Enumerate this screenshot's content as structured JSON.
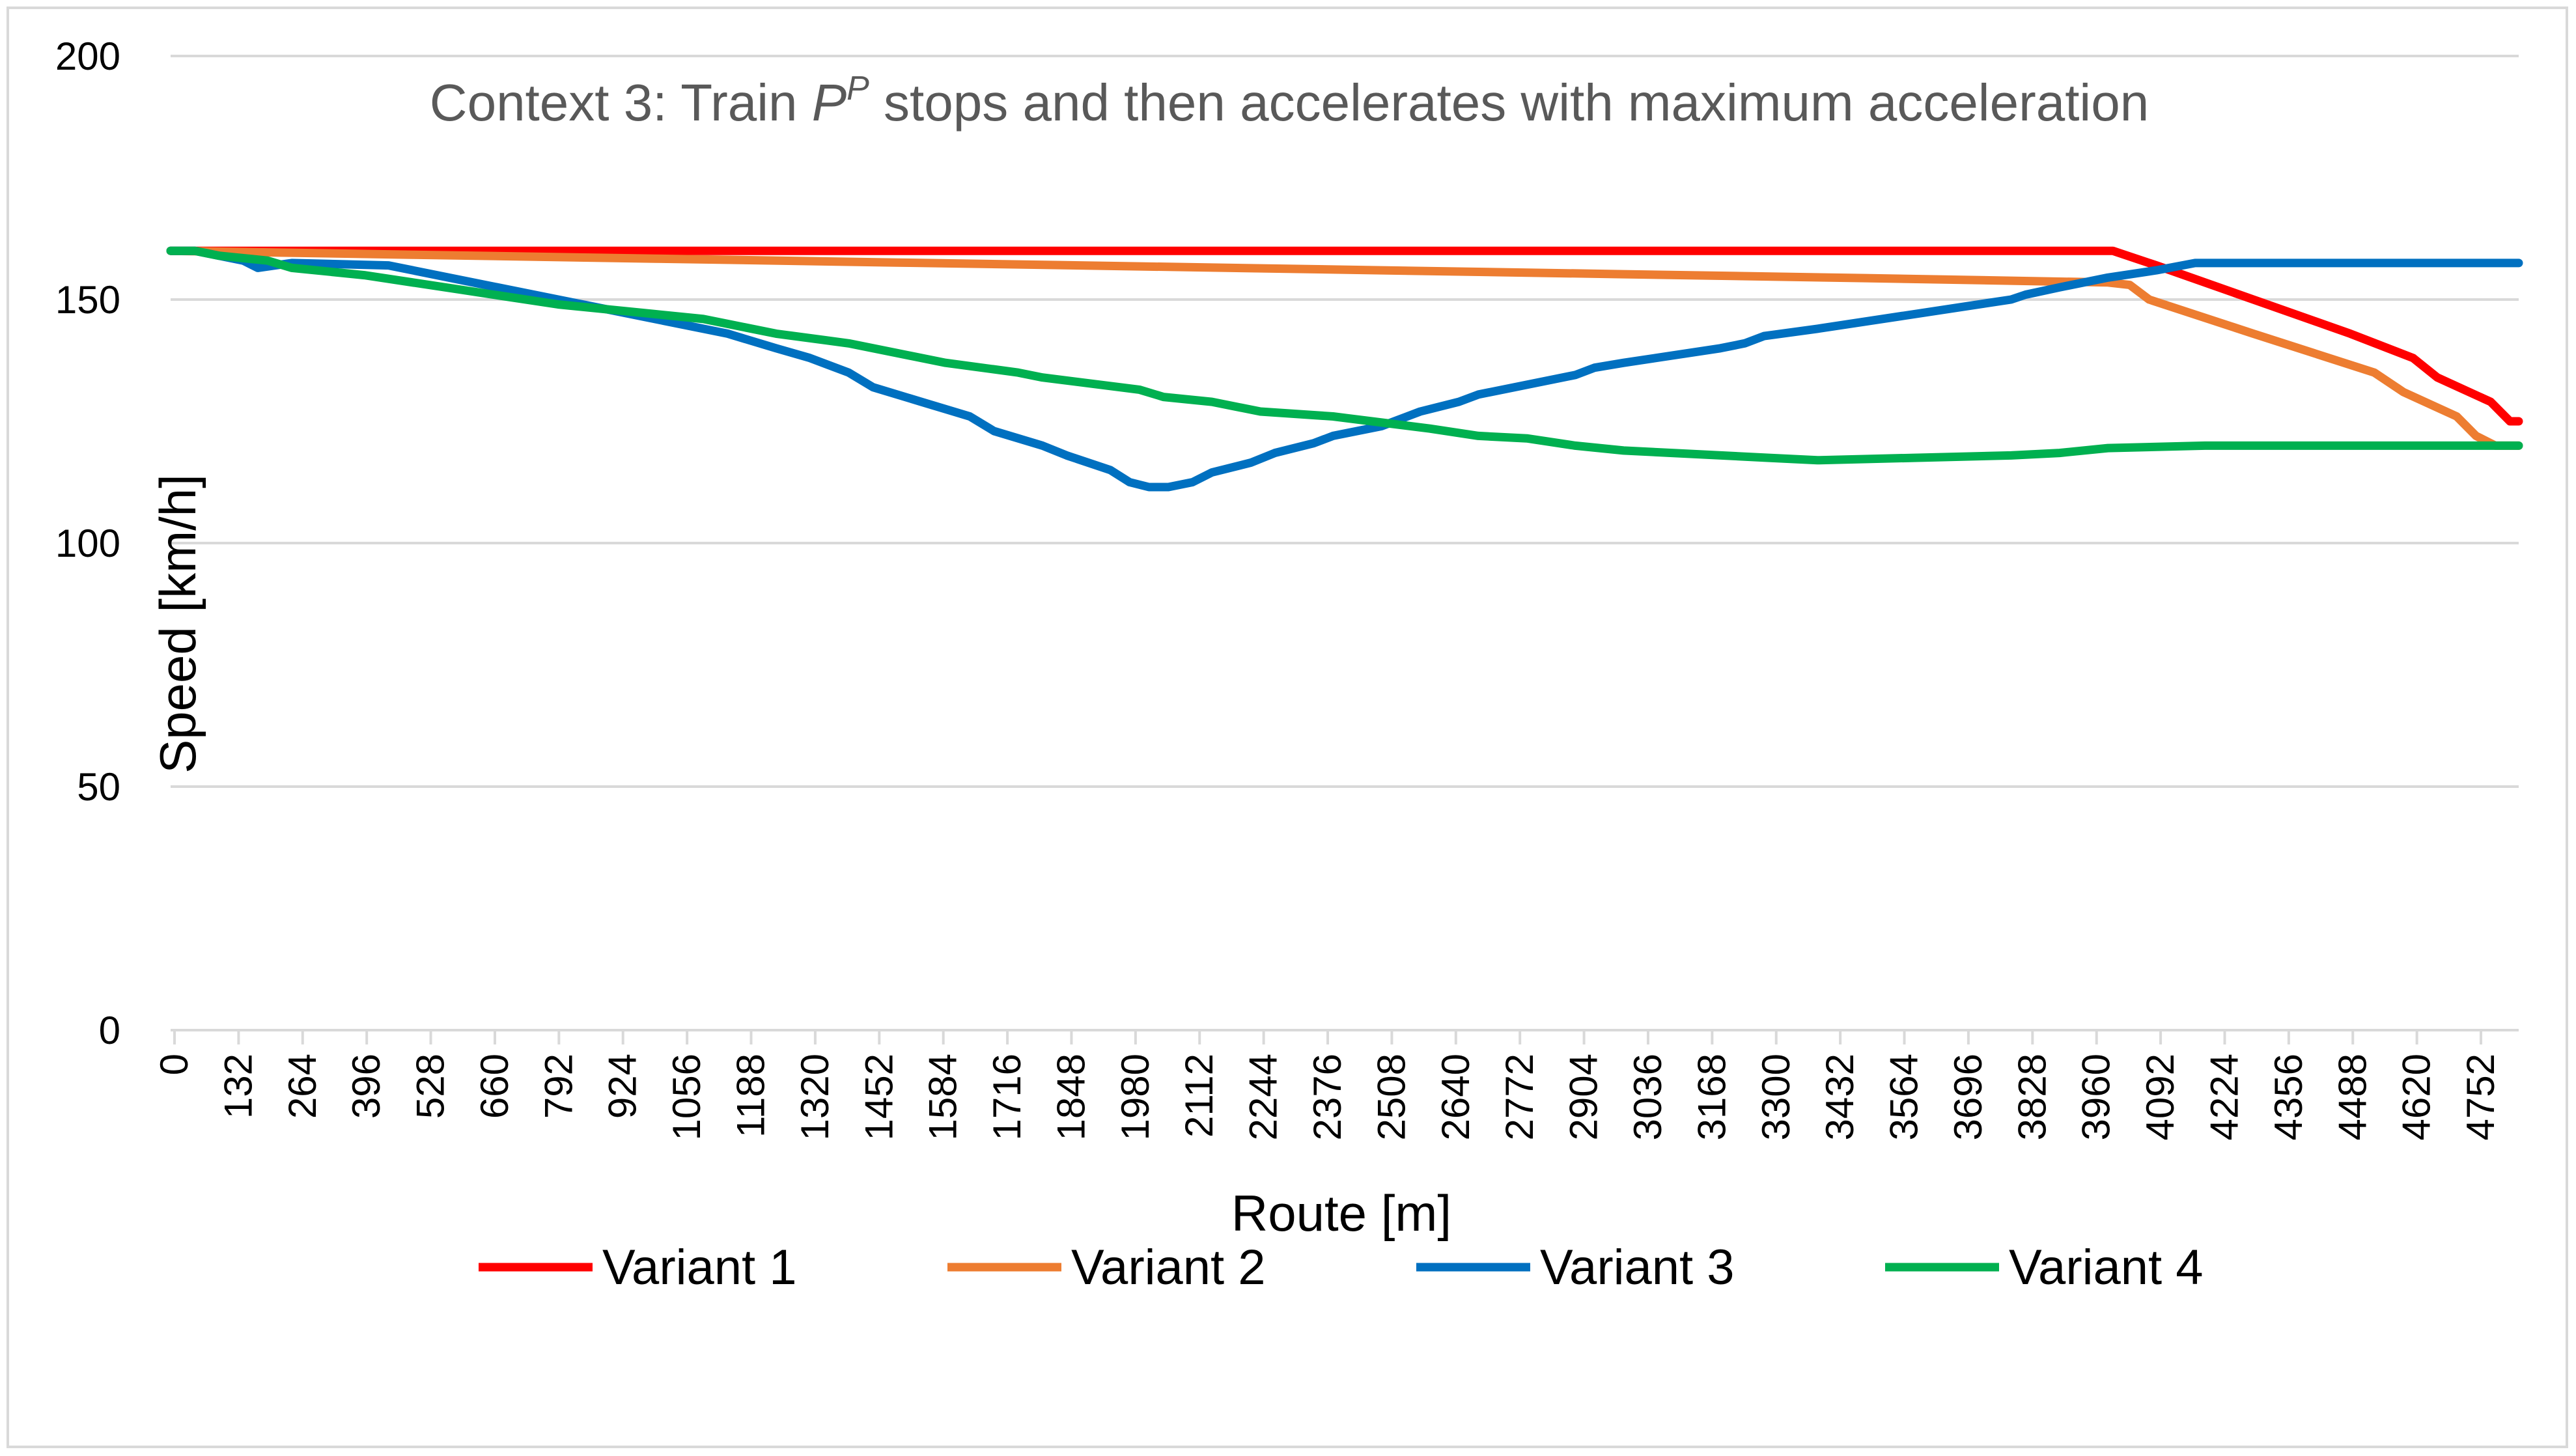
{
  "chart_data": {
    "type": "line",
    "title": {
      "prefix": "Context 3: Train ",
      "symbol": "P",
      "superscript": "P",
      "suffix": " stops and then accelerates with maximum acceleration"
    },
    "xlabel": "Route [m]",
    "ylabel": "Speed [km/h]",
    "xlim": [
      0,
      4848
    ],
    "ylim": [
      0,
      200
    ],
    "y_ticks": [
      0,
      50,
      100,
      150,
      200
    ],
    "x_ticks": [
      0,
      132,
      264,
      396,
      528,
      660,
      792,
      924,
      1056,
      1188,
      1320,
      1452,
      1584,
      1716,
      1848,
      1980,
      2112,
      2244,
      2376,
      2508,
      2640,
      2772,
      2904,
      3036,
      3168,
      3300,
      3432,
      3564,
      3696,
      3828,
      3960,
      4092,
      4224,
      4356,
      4488,
      4620,
      4752
    ],
    "grid": true,
    "legend_position": "bottom",
    "series": [
      {
        "name": "Variant 1",
        "color": "#ff0000",
        "points": [
          [
            0,
            160
          ],
          [
            4010,
            160
          ],
          [
            4100,
            157
          ],
          [
            4300,
            150
          ],
          [
            4500,
            143
          ],
          [
            4630,
            138
          ],
          [
            4680,
            134
          ],
          [
            4790,
            129
          ],
          [
            4830,
            125
          ],
          [
            4848,
            125
          ]
        ]
      },
      {
        "name": "Variant 2",
        "color": "#ed7d31",
        "points": [
          [
            0,
            160
          ],
          [
            500,
            159.2
          ],
          [
            1000,
            158.4
          ],
          [
            1500,
            157.6
          ],
          [
            2000,
            156.8
          ],
          [
            2500,
            156
          ],
          [
            3000,
            155.2
          ],
          [
            3500,
            154.4
          ],
          [
            4000,
            153.5
          ],
          [
            4045,
            153
          ],
          [
            4085,
            150
          ],
          [
            4300,
            143
          ],
          [
            4550,
            135
          ],
          [
            4610,
            131
          ],
          [
            4720,
            126
          ],
          [
            4760,
            122
          ],
          [
            4800,
            120
          ],
          [
            4848,
            120
          ]
        ]
      },
      {
        "name": "Variant 3",
        "color": "#0070c0",
        "points": [
          [
            0,
            160
          ],
          [
            50,
            160
          ],
          [
            150,
            158
          ],
          [
            180,
            156.5
          ],
          [
            250,
            157.5
          ],
          [
            450,
            157
          ],
          [
            600,
            154
          ],
          [
            800,
            150
          ],
          [
            1000,
            146
          ],
          [
            1150,
            143
          ],
          [
            1250,
            140
          ],
          [
            1320,
            138
          ],
          [
            1400,
            135
          ],
          [
            1450,
            132
          ],
          [
            1550,
            129
          ],
          [
            1650,
            126
          ],
          [
            1700,
            123
          ],
          [
            1800,
            120
          ],
          [
            1850,
            118
          ],
          [
            1940,
            115
          ],
          [
            1980,
            112.5
          ],
          [
            2020,
            111.5
          ],
          [
            2060,
            111.5
          ],
          [
            2110,
            112.5
          ],
          [
            2150,
            114.5
          ],
          [
            2230,
            116.5
          ],
          [
            2280,
            118.5
          ],
          [
            2360,
            120.5
          ],
          [
            2400,
            122
          ],
          [
            2500,
            124
          ],
          [
            2580,
            127
          ],
          [
            2660,
            129
          ],
          [
            2700,
            130.5
          ],
          [
            2900,
            134.5
          ],
          [
            2940,
            136
          ],
          [
            3000,
            137
          ],
          [
            3200,
            140
          ],
          [
            3250,
            141
          ],
          [
            3290,
            142.5
          ],
          [
            3400,
            144
          ],
          [
            3800,
            150
          ],
          [
            3830,
            151
          ],
          [
            3900,
            152.5
          ],
          [
            4000,
            154.5
          ],
          [
            4100,
            156
          ],
          [
            4180,
            157.5
          ],
          [
            4848,
            157.5
          ]
        ]
      },
      {
        "name": "Variant 4",
        "color": "#00b050",
        "points": [
          [
            0,
            160
          ],
          [
            50,
            160
          ],
          [
            100,
            159
          ],
          [
            200,
            158
          ],
          [
            250,
            156.5
          ],
          [
            400,
            155
          ],
          [
            600,
            152
          ],
          [
            800,
            149
          ],
          [
            1000,
            147
          ],
          [
            1100,
            146
          ],
          [
            1150,
            145
          ],
          [
            1250,
            143
          ],
          [
            1400,
            141
          ],
          [
            1450,
            140
          ],
          [
            1500,
            139
          ],
          [
            1600,
            137
          ],
          [
            1750,
            135
          ],
          [
            1800,
            134
          ],
          [
            2000,
            131.5
          ],
          [
            2050,
            130
          ],
          [
            2150,
            129
          ],
          [
            2250,
            127
          ],
          [
            2400,
            126
          ],
          [
            2480,
            125
          ],
          [
            2600,
            123.5
          ],
          [
            2700,
            122
          ],
          [
            2800,
            121.5
          ],
          [
            2900,
            120
          ],
          [
            3000,
            119
          ],
          [
            3100,
            118.5
          ],
          [
            3300,
            117.5
          ],
          [
            3400,
            117
          ],
          [
            3600,
            117.5
          ],
          [
            3800,
            118
          ],
          [
            3900,
            118.5
          ],
          [
            4000,
            119.5
          ],
          [
            4200,
            120
          ],
          [
            4848,
            120
          ]
        ]
      }
    ]
  }
}
